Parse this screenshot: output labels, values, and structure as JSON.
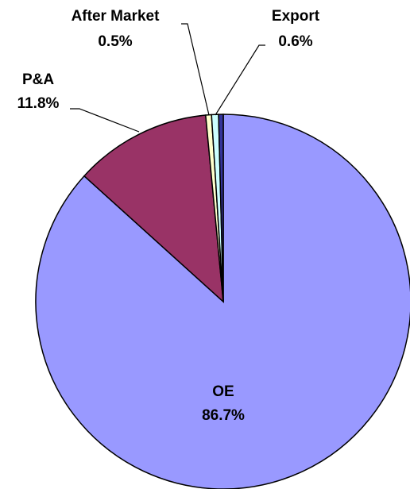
{
  "chart_data": {
    "type": "pie",
    "categories": [
      "OE",
      "P&A",
      "After Market",
      "Export",
      null
    ],
    "values": [
      86.7,
      11.8,
      0.5,
      0.6,
      0.4
    ],
    "value_labels": [
      "86.7%",
      "11.8%",
      "0.5%",
      "0.6%",
      null
    ],
    "colors": [
      "#9999ff",
      "#993366",
      "#ffffcc",
      "#ccffff",
      "#333399"
    ]
  }
}
